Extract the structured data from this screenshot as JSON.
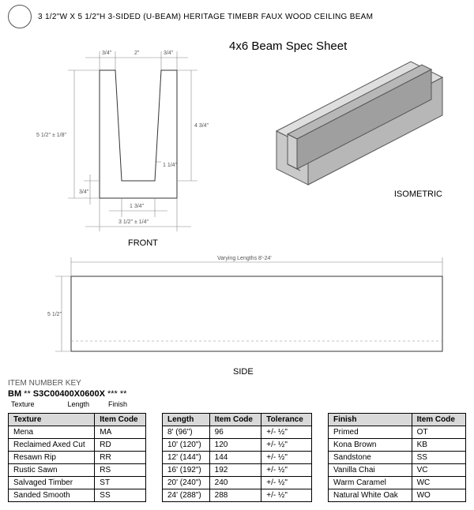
{
  "header": {
    "title": "3 1/2\"W X 5 1/2\"H 3-SIDED (U-BEAM) HERITAGE TIMEBR FAUX WOOD CEILING BEAM"
  },
  "spec_title": "4x6 Beam Spec Sheet",
  "labels": {
    "isometric": "ISOMETRIC",
    "front": "FRONT",
    "side": "SIDE"
  },
  "front_dims": {
    "top_left_wall": "3/4\"",
    "top_mid": "2\"",
    "top_right_wall": "3/4\"",
    "overall_height": "5 1/2\" ± 1/8\"",
    "inner_height": "4 3/4\"",
    "inner_notch": "1 1/4\"",
    "base_thick": "3/4\"",
    "inner_width": "1 3/4\"",
    "overall_width": "3 1/2\" ± 1/4\""
  },
  "side": {
    "length_label": "Varying Lengths 8'-24'",
    "height": "5 1/2\""
  },
  "item_key": {
    "heading": "ITEM NUMBER KEY",
    "code_prefix": "BM ** S3C00400X0600X *** **",
    "sub1": "Texture",
    "sub2": "Length",
    "sub3": "Finish"
  },
  "tables": {
    "texture": {
      "headers": [
        "Texture",
        "Item Code"
      ],
      "rows": [
        [
          "Mena",
          "MA"
        ],
        [
          "Reclaimed Axed Cut",
          "RD"
        ],
        [
          "Resawn Rip",
          "RR"
        ],
        [
          "Rustic Sawn",
          "RS"
        ],
        [
          "Salvaged Timber",
          "ST"
        ],
        [
          "Sanded Smooth",
          "SS"
        ]
      ]
    },
    "length": {
      "headers": [
        "Length",
        "Item Code",
        "Tolerance"
      ],
      "rows": [
        [
          "8' (96\")",
          "96",
          "+/- ½\""
        ],
        [
          "10' (120\")",
          "120",
          "+/- ½\""
        ],
        [
          "12' (144\")",
          "144",
          "+/- ½\""
        ],
        [
          "16' (192\")",
          "192",
          "+/- ½\""
        ],
        [
          "20' (240\")",
          "240",
          "+/- ½\""
        ],
        [
          "24' (288\")",
          "288",
          "+/- ½\""
        ]
      ]
    },
    "finish": {
      "headers": [
        "Finish",
        "Item Code"
      ],
      "rows": [
        [
          "Primed",
          "OT"
        ],
        [
          "Kona Brown",
          "KB"
        ],
        [
          "Sandstone",
          "SS"
        ],
        [
          "Vanilla Chai",
          "VC"
        ],
        [
          "Warm Caramel",
          "WC"
        ],
        [
          "Natural White Oak",
          "WO"
        ]
      ]
    }
  },
  "colors": {
    "iso_face_light": "#dedede",
    "iso_face_mid": "#c9c9c9",
    "iso_face_dark": "#b7b7b7",
    "iso_stroke": "#555555",
    "side_fill": "#f4f4f4"
  }
}
